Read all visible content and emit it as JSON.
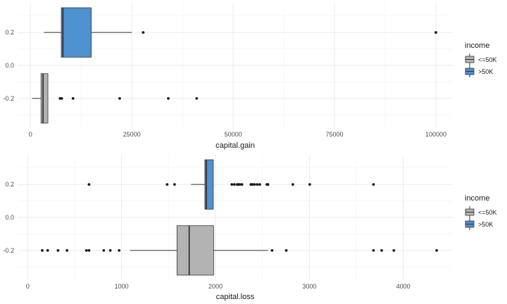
{
  "chart_data": [
    {
      "type": "boxplot",
      "orientation": "horizontal",
      "xlabel": "capital.gain",
      "xlim": [
        -3000,
        104000
      ],
      "xticks": [
        0,
        25000,
        50000,
        75000,
        100000
      ],
      "ylim": [
        -0.38,
        0.38
      ],
      "yticks": [
        0.2,
        0.0,
        -0.2
      ],
      "ytick_labels": [
        "0.2",
        "0.0",
        "-0.2"
      ],
      "grid": true,
      "legend": {
        "title": "income",
        "position": "right",
        "entries": [
          "<=50K",
          ">50K"
        ]
      },
      "series": [
        {
          "name": "<=50K",
          "color": "#b3b3b3",
          "y_center": -0.2,
          "box_height": 0.3,
          "whisker_low": 400,
          "q1": 2600,
          "median": 3100,
          "q3": 4300,
          "whisker_high": 4300,
          "outliers": [
            7300,
            7700,
            10500,
            22000,
            34000,
            41000
          ]
        },
        {
          "name": ">50K",
          "color": "#4e91d0",
          "y_center": 0.2,
          "box_height": 0.3,
          "whisker_low": 3300,
          "q1": 7600,
          "median": 8000,
          "q3": 15000,
          "whisker_high": 25000,
          "outliers": [
            27800,
            100000
          ]
        }
      ]
    },
    {
      "type": "boxplot",
      "orientation": "horizontal",
      "xlabel": "capital.loss",
      "xlim": [
        -100,
        4520
      ],
      "xticks": [
        0,
        1000,
        2000,
        3000,
        4000
      ],
      "ylim": [
        -0.38,
        0.38
      ],
      "yticks": [
        0.2,
        0.0,
        -0.2
      ],
      "ytick_labels": [
        "0.2",
        "0.0",
        "-0.2"
      ],
      "grid": true,
      "legend": {
        "title": "income",
        "position": "right",
        "entries": [
          "<=50K",
          ">50K"
        ]
      },
      "series": [
        {
          "name": "<=50K",
          "color": "#b3b3b3",
          "y_center": -0.2,
          "box_height": 0.3,
          "whisker_low": 1090,
          "q1": 1590,
          "median": 1720,
          "q3": 1980,
          "whisker_high": 2560,
          "outliers": [
            155,
            213,
            323,
            419,
            625,
            653,
            810,
            880,
            974,
            2603,
            2754,
            3683,
            3770,
            3900,
            4356
          ]
        },
        {
          "name": ">50K",
          "color": "#4e91d0",
          "y_center": 0.2,
          "box_height": 0.3,
          "whisker_low": 1740,
          "q1": 1887,
          "median": 1902,
          "q3": 1977,
          "whisker_high": 1977,
          "outliers": [
            653,
            1485,
            1564,
            2174,
            2201,
            2231,
            2246,
            2258,
            2282,
            2377,
            2392,
            2415,
            2444,
            2472,
            2547,
            2559,
            2824,
            3004,
            3683
          ]
        }
      ]
    }
  ]
}
